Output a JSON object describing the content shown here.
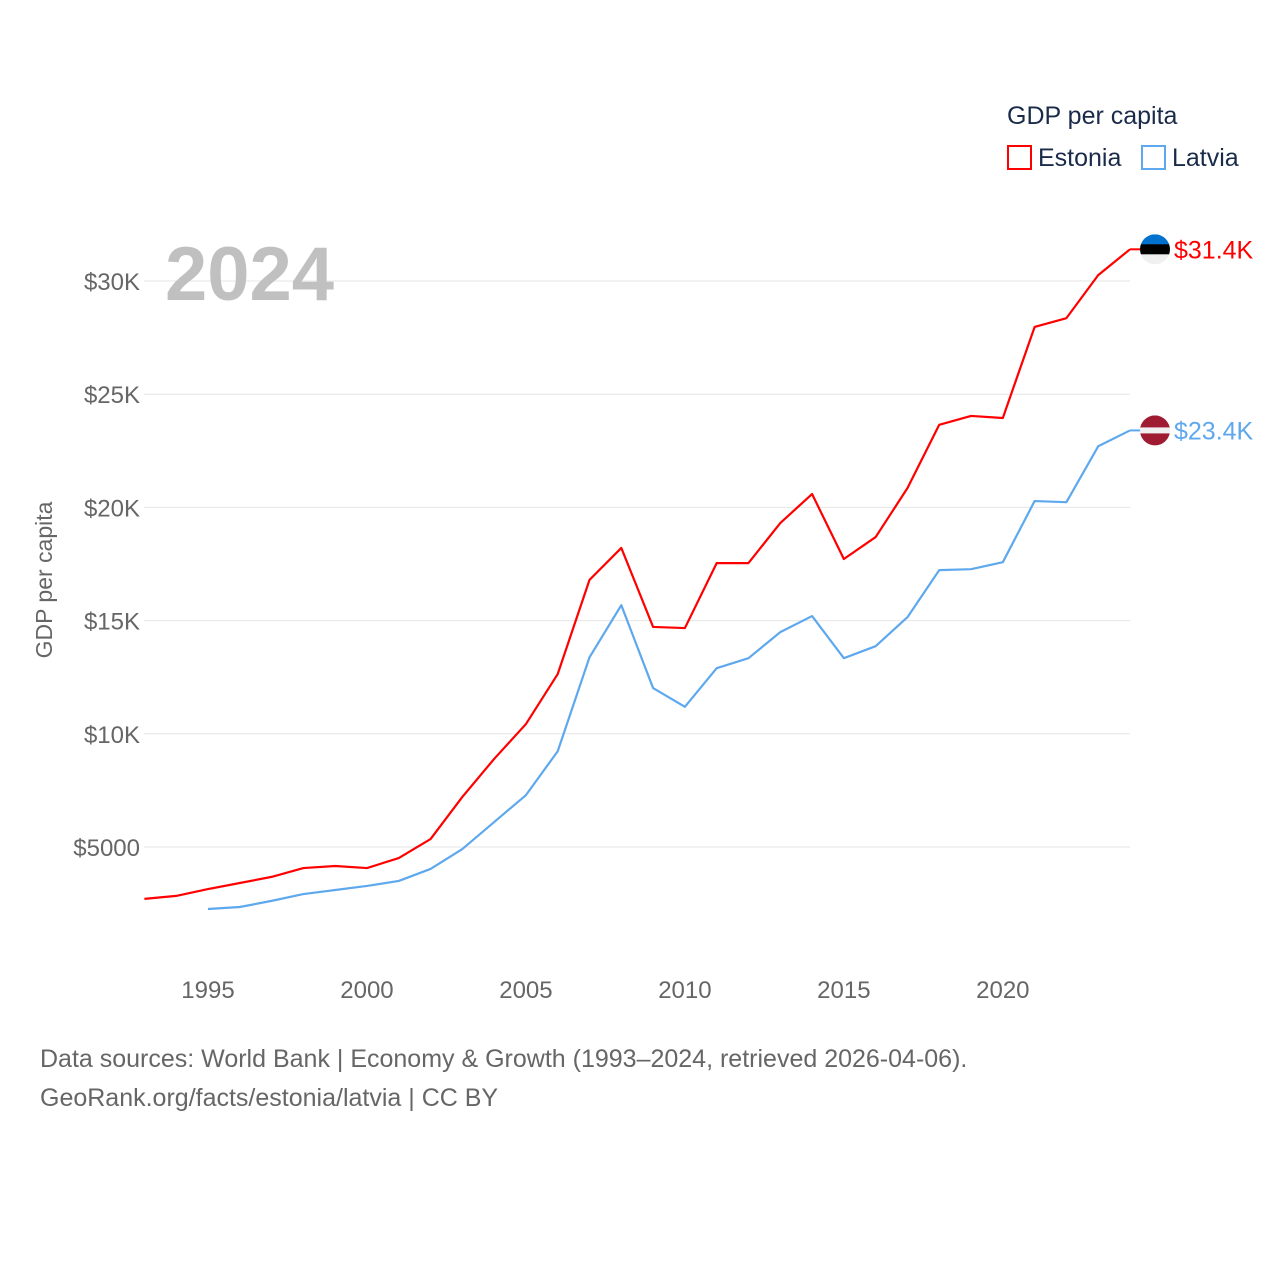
{
  "chart_data": {
    "type": "line",
    "title": "GDP per capita",
    "ylabel": "GDP per capita",
    "xlabel": "",
    "year_label": "2024",
    "ylim": [
      0,
      32000
    ],
    "xlim": [
      1993,
      2024
    ],
    "yticks": [
      5000,
      10000,
      15000,
      20000,
      25000,
      30000
    ],
    "ytick_labels": [
      "$5000",
      "$10K",
      "$15K",
      "$20K",
      "$25K",
      "$30K"
    ],
    "xticks": [
      1995,
      2000,
      2005,
      2010,
      2015,
      2020
    ],
    "xtick_labels": [
      "1995",
      "2000",
      "2005",
      "2010",
      "2015",
      "2020"
    ],
    "grid": true,
    "legend_position": "top-right",
    "series": [
      {
        "name": "Estonia",
        "color": "#ff0000",
        "end_label": "$31.4K",
        "flag": "estonia-flag",
        "x": [
          1993,
          1994,
          1995,
          1996,
          1997,
          1998,
          1999,
          2000,
          2001,
          2002,
          2003,
          2004,
          2005,
          2006,
          2007,
          2008,
          2009,
          2010,
          2011,
          2012,
          2013,
          2014,
          2015,
          2016,
          2017,
          2018,
          2019,
          2020,
          2021,
          2022,
          2023,
          2024
        ],
        "values": [
          2710,
          2840,
          3140,
          3410,
          3680,
          4070,
          4160,
          4070,
          4510,
          5350,
          7210,
          8890,
          10430,
          12640,
          16800,
          18210,
          14720,
          14670,
          17540,
          17540,
          19310,
          20590,
          17720,
          18690,
          20850,
          23650,
          24040,
          23950,
          27970,
          28360,
          30260,
          31400
        ]
      },
      {
        "name": "Latvia",
        "color": "#5ea8ee",
        "end_label": "$23.4K",
        "flag": "latvia-flag",
        "x": [
          1995,
          1996,
          1997,
          1998,
          1999,
          2000,
          2001,
          2002,
          2003,
          2004,
          2005,
          2006,
          2007,
          2008,
          2009,
          2010,
          2011,
          2012,
          2013,
          2014,
          2015,
          2016,
          2017,
          2018,
          2019,
          2020,
          2021,
          2022,
          2023,
          2024
        ],
        "values": [
          2260,
          2350,
          2620,
          2920,
          3100,
          3280,
          3500,
          4030,
          4910,
          6100,
          7290,
          9230,
          13380,
          15680,
          12020,
          11190,
          12900,
          13340,
          14490,
          15200,
          13340,
          13870,
          15150,
          17230,
          17270,
          17580,
          20280,
          20230,
          22700,
          23400
        ]
      }
    ]
  },
  "footer": {
    "line1": "Data sources: World Bank | Economy & Growth (1993–2024, retrieved 2026-04-06).",
    "line2": "GeoRank.org/facts/estonia/latvia | CC BY"
  }
}
